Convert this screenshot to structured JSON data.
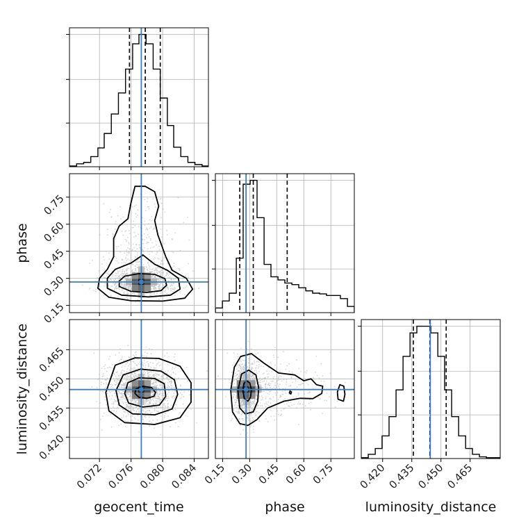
{
  "chart_data": {
    "type": "corner",
    "parameters": [
      "geocent_time",
      "phase",
      "luminosity_distance"
    ],
    "truth": {
      "geocent_time": 0.0773,
      "phase": 0.28,
      "luminosity_distance": 0.4445
    },
    "colors": {
      "truth": "#3b7dbd",
      "hist": "#000000",
      "contour": "#000000",
      "points": "#c4c4c4",
      "grid": "#b0b0b0"
    },
    "axes": {
      "geocent_time": {
        "range": [
          0.0682,
          0.0858
        ],
        "ticks": [
          0.072,
          0.076,
          0.08,
          0.084
        ],
        "tick_labels": [
          "0.072",
          "0.076",
          "0.080",
          "0.084"
        ],
        "label": "geocent_time"
      },
      "phase": {
        "range": [
          0.11,
          0.88
        ],
        "ticks": [
          0.15,
          0.3,
          0.45,
          0.6,
          0.75
        ],
        "tick_labels": [
          "0.15",
          "0.30",
          "0.45",
          "0.60",
          "0.75"
        ],
        "label": "phase"
      },
      "luminosity_distance": {
        "range": [
          0.409,
          0.4805
        ],
        "ticks": [
          0.42,
          0.435,
          0.45,
          0.465
        ],
        "tick_labels": [
          "0.420",
          "0.435",
          "0.450",
          "0.465"
        ],
        "label": "luminosity_distance"
      }
    },
    "histograms": {
      "geocent_time": {
        "quantiles": [
          0.0758,
          0.0778,
          0.0797
        ],
        "bin_edges": [
          0.0682,
          0.0691,
          0.07,
          0.0709,
          0.0718,
          0.0726,
          0.0735,
          0.0744,
          0.0753,
          0.0762,
          0.077,
          0.0779,
          0.0788,
          0.0797,
          0.0806,
          0.0814,
          0.0823,
          0.0832,
          0.0841,
          0.085,
          0.0858
        ],
        "counts": [
          1,
          4,
          6,
          14,
          26,
          46,
          73,
          102,
          135,
          170,
          183,
          170,
          135,
          95,
          57,
          27,
          14,
          6,
          3,
          1
        ]
      },
      "phase": {
        "quantiles": [
          0.245,
          0.32,
          0.508
        ],
        "bin_edges": [
          0.11,
          0.149,
          0.187,
          0.226,
          0.264,
          0.303,
          0.341,
          0.38,
          0.418,
          0.457,
          0.495,
          0.534,
          0.572,
          0.611,
          0.649,
          0.688,
          0.726,
          0.765,
          0.803,
          0.842,
          0.88
        ],
        "counts": [
          6,
          15,
          25,
          70,
          165,
          170,
          122,
          62,
          46,
          42,
          38,
          36,
          32,
          28,
          25,
          24,
          22,
          22,
          18,
          8
        ]
      },
      "luminosity_distance": {
        "quantiles": [
          0.4358,
          0.4443,
          0.4527
        ],
        "bin_edges": [
          0.409,
          0.4126,
          0.4162,
          0.4197,
          0.4233,
          0.4269,
          0.4305,
          0.4341,
          0.4376,
          0.4412,
          0.4448,
          0.4484,
          0.4519,
          0.4555,
          0.4591,
          0.4627,
          0.4662,
          0.4698,
          0.4734,
          0.477,
          0.4805
        ],
        "counts": [
          1,
          5,
          12,
          27,
          50,
          82,
          122,
          150,
          158,
          158,
          150,
          122,
          82,
          50,
          27,
          12,
          5,
          2,
          1,
          1
        ]
      }
    },
    "pairs": [
      {
        "x": "geocent_time",
        "y": "phase",
        "contours": [
          [
            [
              0.0745,
              0.255
            ],
            [
              0.076,
              0.228
            ],
            [
              0.078,
              0.222
            ],
            [
              0.0798,
              0.232
            ],
            [
              0.0805,
              0.262
            ],
            [
              0.0803,
              0.298
            ],
            [
              0.079,
              0.322
            ],
            [
              0.077,
              0.326
            ],
            [
              0.0752,
              0.312
            ],
            [
              0.0745,
              0.285
            ]
          ],
          [
            [
              0.073,
              0.245
            ],
            [
              0.0748,
              0.207
            ],
            [
              0.0782,
              0.197
            ],
            [
              0.081,
              0.207
            ],
            [
              0.0822,
              0.24
            ],
            [
              0.082,
              0.3
            ],
            [
              0.0806,
              0.345
            ],
            [
              0.079,
              0.378
            ],
            [
              0.078,
              0.412
            ],
            [
              0.0775,
              0.43
            ],
            [
              0.076,
              0.385
            ],
            [
              0.074,
              0.35
            ],
            [
              0.073,
              0.3
            ]
          ],
          [
            [
              0.0718,
              0.245
            ],
            [
              0.0732,
              0.195
            ],
            [
              0.076,
              0.176
            ],
            [
              0.08,
              0.174
            ],
            [
              0.0828,
              0.19
            ],
            [
              0.0838,
              0.24
            ],
            [
              0.083,
              0.3
            ],
            [
              0.0812,
              0.345
            ],
            [
              0.0804,
              0.42
            ],
            [
              0.0794,
              0.54
            ],
            [
              0.079,
              0.62
            ],
            [
              0.0795,
              0.7
            ],
            [
              0.079,
              0.78
            ],
            [
              0.0778,
              0.81
            ],
            [
              0.0765,
              0.81
            ],
            [
              0.076,
              0.72
            ],
            [
              0.0756,
              0.63
            ],
            [
              0.0745,
              0.59
            ],
            [
              0.0738,
              0.52
            ],
            [
              0.0738,
              0.42
            ],
            [
              0.073,
              0.35
            ],
            [
              0.072,
              0.3
            ]
          ]
        ]
      },
      {
        "x": "geocent_time",
        "y": "luminosity_distance",
        "contours": [
          [
            [
              0.0765,
              0.4425
            ],
            [
              0.077,
              0.4405
            ],
            [
              0.078,
              0.44
            ],
            [
              0.0789,
              0.441
            ],
            [
              0.0791,
              0.443
            ],
            [
              0.0786,
              0.4455
            ],
            [
              0.0775,
              0.4462
            ],
            [
              0.0766,
              0.4448
            ]
          ],
          [
            [
              0.0752,
              0.4425
            ],
            [
              0.0757,
              0.4375
            ],
            [
              0.0775,
              0.4355
            ],
            [
              0.0796,
              0.4365
            ],
            [
              0.0804,
              0.441
            ],
            [
              0.0802,
              0.4475
            ],
            [
              0.079,
              0.4502
            ],
            [
              0.077,
              0.4505
            ],
            [
              0.0756,
              0.448
            ]
          ],
          [
            [
              0.0741,
              0.444
            ],
            [
              0.0745,
              0.4365
            ],
            [
              0.0762,
              0.432
            ],
            [
              0.079,
              0.4315
            ],
            [
              0.0812,
              0.4345
            ],
            [
              0.0819,
              0.442
            ],
            [
              0.0815,
              0.4495
            ],
            [
              0.0798,
              0.454
            ],
            [
              0.0772,
              0.455
            ],
            [
              0.075,
              0.452
            ]
          ],
          [
            [
              0.0728,
              0.443
            ],
            [
              0.0732,
              0.4335
            ],
            [
              0.0752,
              0.4275
            ],
            [
              0.079,
              0.4265
            ],
            [
              0.0822,
              0.43
            ],
            [
              0.0836,
              0.438
            ],
            [
              0.0836,
              0.448
            ],
            [
              0.0822,
              0.4565
            ],
            [
              0.0795,
              0.4605
            ],
            [
              0.0765,
              0.4608
            ],
            [
              0.074,
              0.457
            ]
          ]
        ]
      },
      {
        "x": "phase",
        "y": "luminosity_distance",
        "contours": [
          [
            [
              0.262,
              0.444
            ],
            [
              0.27,
              0.44
            ],
            [
              0.29,
              0.4385
            ],
            [
              0.305,
              0.4405
            ],
            [
              0.31,
              0.4445
            ],
            [
              0.3,
              0.448
            ],
            [
              0.283,
              0.449
            ],
            [
              0.268,
              0.4475
            ]
          ],
          [
            [
              0.235,
              0.444
            ],
            [
              0.245,
              0.435
            ],
            [
              0.275,
              0.432
            ],
            [
              0.32,
              0.433
            ],
            [
              0.345,
              0.4385
            ],
            [
              0.35,
              0.4455
            ],
            [
              0.335,
              0.452
            ],
            [
              0.295,
              0.4545
            ],
            [
              0.255,
              0.4525
            ]
          ],
          [
            [
              0.195,
              0.444
            ],
            [
              0.205,
              0.433
            ],
            [
              0.245,
              0.427
            ],
            [
              0.29,
              0.426
            ],
            [
              0.34,
              0.429
            ],
            [
              0.4,
              0.435
            ],
            [
              0.49,
              0.4385
            ],
            [
              0.58,
              0.44
            ],
            [
              0.65,
              0.4398
            ],
            [
              0.7,
              0.4425
            ],
            [
              0.705,
              0.4462
            ],
            [
              0.67,
              0.447
            ],
            [
              0.64,
              0.45
            ],
            [
              0.6,
              0.449
            ],
            [
              0.55,
              0.452
            ],
            [
              0.46,
              0.453
            ],
            [
              0.38,
              0.458
            ],
            [
              0.31,
              0.463
            ],
            [
              0.25,
              0.4615
            ],
            [
              0.215,
              0.456
            ]
          ],
          [
            [
              0.79,
              0.4395
            ],
            [
              0.82,
              0.4385
            ],
            [
              0.828,
              0.442
            ],
            [
              0.822,
              0.4462
            ],
            [
              0.8,
              0.447
            ],
            [
              0.786,
              0.4432
            ]
          ],
          [
            [
              0.52,
              0.4428
            ],
            [
              0.528,
              0.4422
            ],
            [
              0.532,
              0.4432
            ],
            [
              0.524,
              0.4438
            ]
          ]
        ]
      }
    ]
  }
}
